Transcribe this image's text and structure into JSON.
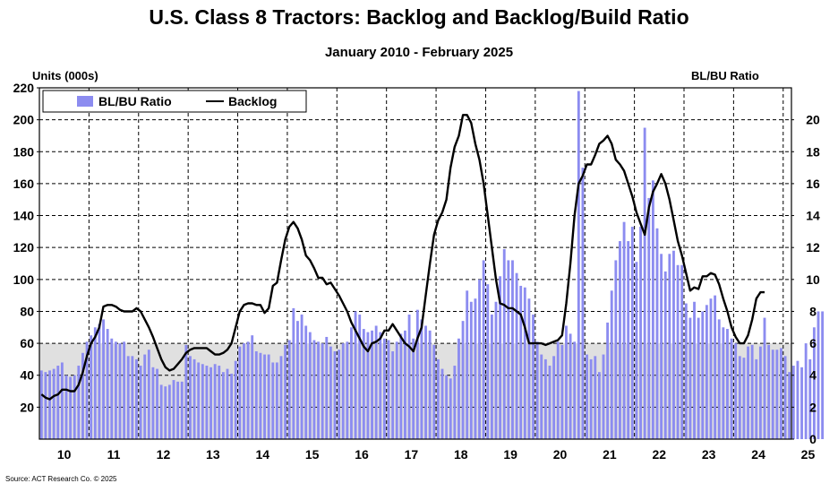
{
  "title": "U.S. Class 8 Tractors: Backlog and Backlog/Build Ratio",
  "subtitle": "January 2010 - February 2025",
  "source": "Source: ACT Research Co. © 2025",
  "colors": {
    "bar": "#8C8CF0",
    "line": "#000000",
    "shade": "#E0E0E0"
  },
  "chart_data": {
    "type": "bar",
    "ylabel": "Units (000s)",
    "y2label": "BL/BU Ratio",
    "ylim": [
      0,
      220
    ],
    "y2lim": [
      0,
      22
    ],
    "yticks": [
      "20",
      "40",
      "60",
      "80",
      "100",
      "120",
      "140",
      "160",
      "180",
      "200",
      "220"
    ],
    "y2ticks": [
      "0",
      "2",
      "4",
      "6",
      "8",
      "10",
      "12",
      "14",
      "16",
      "18",
      "20"
    ],
    "xtick_labels": [
      "10",
      "11",
      "12",
      "13",
      "14",
      "15",
      "16",
      "17",
      "18",
      "19",
      "20",
      "21",
      "22",
      "23",
      "24",
      "25"
    ],
    "grid": true,
    "legend": "top-left",
    "shaded_band": [
      0,
      60
    ],
    "series": [
      {
        "name": "BL/BU Ratio",
        "type": "bar",
        "axis": "right",
        "values": [
          4.3,
          4.2,
          4.3,
          4.4,
          4.6,
          4.8,
          4.0,
          3.9,
          4.0,
          4.6,
          5.4,
          6.1,
          6.5,
          7.0,
          7.2,
          7.5,
          6.9,
          6.3,
          6.1,
          6.0,
          6.1,
          5.2,
          5.2,
          5.0,
          4.6,
          5.3,
          5.6,
          4.5,
          4.4,
          3.4,
          3.3,
          3.4,
          3.7,
          3.6,
          3.6,
          5.9,
          5.2,
          5.0,
          4.8,
          4.7,
          4.6,
          4.5,
          4.7,
          4.6,
          4.2,
          4.4,
          4.1,
          4.9,
          5.8,
          6.0,
          6.1,
          6.5,
          5.5,
          5.4,
          5.3,
          5.3,
          4.8,
          4.8,
          5.2,
          5.9,
          6.2,
          8.2,
          7.4,
          7.8,
          7.1,
          6.7,
          6.2,
          6.1,
          6.0,
          6.4,
          5.8,
          5.5,
          5.6,
          6.0,
          6.1,
          7.0,
          8.0,
          7.8,
          6.9,
          6.7,
          6.8,
          7.1,
          6.7,
          6.3,
          6.2,
          5.5,
          6.1,
          6.6,
          6.8,
          7.8,
          6.3,
          8.1,
          7.5,
          7.1,
          6.8,
          5.9,
          5.0,
          4.4,
          4.0,
          3.8,
          4.6,
          6.3,
          7.4,
          9.3,
          8.6,
          8.8,
          10.0,
          11.2,
          9.7,
          7.8,
          8.6,
          10.2,
          11.9,
          11.2,
          11.2,
          10.4,
          9.6,
          9.5,
          8.8,
          7.8,
          6.1,
          5.3,
          5.0,
          4.6,
          5.2,
          6.1,
          5.9,
          7.1,
          6.6,
          6.1,
          21.8,
          17.0,
          5.3,
          5.0,
          5.2,
          4.2,
          5.3,
          7.3,
          9.3,
          11.2,
          12.4,
          13.6,
          12.4,
          13.3,
          11.1,
          13.3,
          19.5,
          15.1,
          16.2,
          13.2,
          11.6,
          10.5,
          11.6,
          11.8,
          10.9,
          10.9,
          8.5,
          7.6,
          8.6,
          7.6,
          8.0,
          8.4,
          8.8,
          9.0,
          7.5,
          7.0,
          6.9,
          6.3,
          6.0,
          5.2,
          5.1,
          5.8,
          5.9,
          5.0,
          5.8,
          7.6,
          5.9,
          5.6,
          5.6,
          5.7,
          5.2,
          4.2,
          4.6,
          4.9,
          4.5,
          6.0,
          5.0,
          7.0,
          8.0,
          8.0
        ]
      },
      {
        "name": "Backlog",
        "type": "line",
        "axis": "left",
        "values": [
          28,
          26,
          25,
          27,
          28,
          31,
          31,
          30,
          30,
          34,
          42,
          52,
          60,
          64,
          70,
          83,
          84,
          84,
          83,
          81,
          80,
          80,
          80,
          82,
          80,
          75,
          70,
          64,
          57,
          50,
          45,
          43,
          44,
          47,
          50,
          54,
          56,
          57,
          57,
          57,
          57,
          55,
          53,
          53,
          54,
          56,
          60,
          70,
          80,
          84,
          85,
          85,
          84,
          84,
          79,
          82,
          96,
          98,
          112,
          125,
          133,
          136,
          132,
          125,
          115,
          112,
          107,
          101,
          101,
          97,
          98,
          94,
          90,
          85,
          80,
          73,
          68,
          63,
          58,
          55,
          60,
          61,
          63,
          68,
          68,
          72,
          68,
          64,
          60,
          58,
          55,
          63,
          70,
          90,
          110,
          128,
          137,
          142,
          150,
          170,
          183,
          190,
          203,
          203,
          198,
          185,
          175,
          160,
          140,
          120,
          100,
          85,
          84,
          82,
          82,
          80,
          78,
          70,
          60,
          60,
          60,
          60,
          59,
          60,
          61,
          62,
          65,
          85,
          110,
          140,
          160,
          165,
          172,
          172,
          178,
          185,
          187,
          190,
          185,
          175,
          172,
          168,
          160,
          152,
          142,
          135,
          128,
          145,
          155,
          160,
          166,
          160,
          150,
          137,
          124,
          115,
          104,
          93,
          95,
          94,
          102,
          102,
          104,
          103,
          97,
          88,
          80,
          70,
          64,
          60,
          60,
          65,
          75,
          88,
          92,
          92
        ]
      }
    ]
  }
}
